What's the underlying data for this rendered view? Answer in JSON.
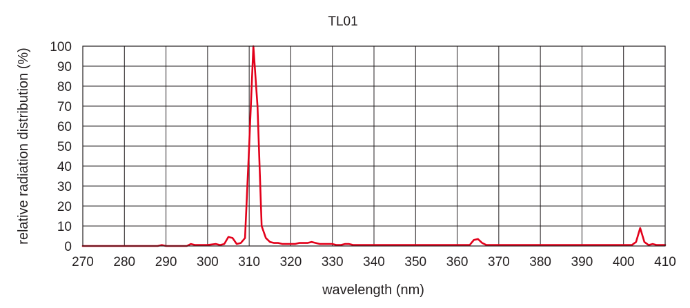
{
  "chart_data": {
    "type": "line",
    "title": "TL01",
    "xlabel": "wavelength (nm)",
    "ylabel": "relative radiation distribution (%)",
    "xlim": [
      270,
      410
    ],
    "ylim": [
      0,
      100
    ],
    "x_ticks": [
      270,
      280,
      290,
      300,
      310,
      320,
      330,
      340,
      350,
      360,
      370,
      380,
      390,
      400,
      410
    ],
    "y_ticks": [
      0,
      10,
      20,
      30,
      40,
      50,
      60,
      70,
      80,
      90,
      100
    ],
    "grid": true,
    "series": [
      {
        "color": "#e2001a",
        "x": [
          270,
          288,
          289,
          290,
          295,
          296,
          297,
          300,
          302,
          303,
          304,
          305,
          306,
          307,
          308,
          309,
          310,
          311,
          312,
          313,
          314,
          315,
          316,
          317,
          318,
          320,
          321,
          322,
          324,
          325,
          326,
          327,
          330,
          331,
          332,
          333,
          334,
          335,
          340,
          350,
          360,
          363,
          364,
          365,
          366,
          367,
          370,
          380,
          390,
          400,
          402,
          403,
          404,
          405,
          406,
          407,
          408,
          409,
          410
        ],
        "y": [
          0,
          0,
          0.5,
          0,
          0,
          1,
          0.5,
          0.5,
          1,
          0.5,
          1,
          4.5,
          4,
          1,
          1.5,
          4,
          50,
          100,
          70,
          10,
          4,
          2,
          1.5,
          1.5,
          1,
          1,
          1,
          1.5,
          1.5,
          2,
          1.5,
          1,
          1,
          0.5,
          0.5,
          1,
          1,
          0.5,
          0.5,
          0.5,
          0.5,
          0.5,
          3,
          3.5,
          1.5,
          0.5,
          0.5,
          0.5,
          0.5,
          0.5,
          0.5,
          2,
          9,
          2,
          0.5,
          1,
          0.5,
          0.5,
          0.5
        ]
      }
    ]
  }
}
